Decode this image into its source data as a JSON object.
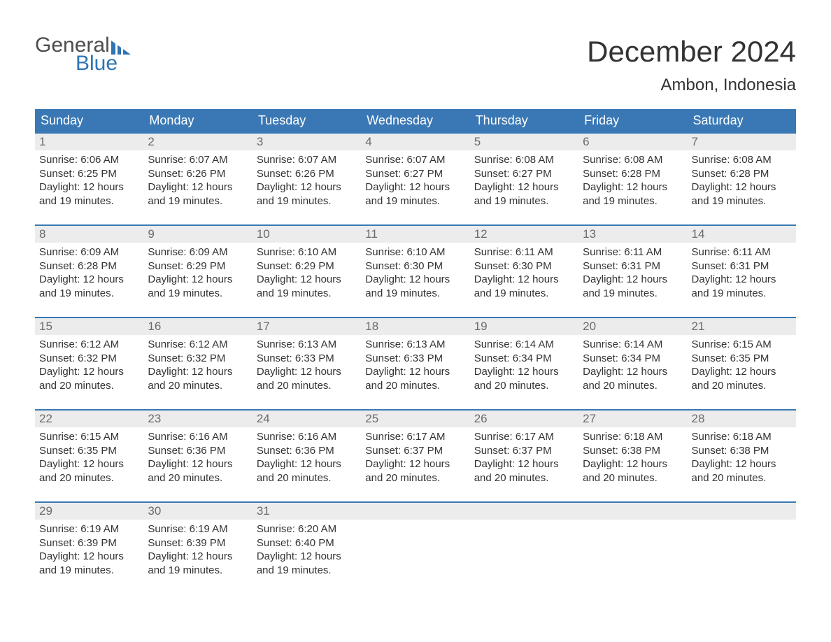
{
  "logo": {
    "word1": "General",
    "word2": "Blue",
    "accent_color": "#2e74b5",
    "text_color": "#4d4d4d"
  },
  "title": "December 2024",
  "location": "Ambon, Indonesia",
  "colors": {
    "header_bg": "#3a78b5",
    "header_text": "#ffffff",
    "week_border": "#3a78b5",
    "daynum_bg": "#ececec",
    "daynum_color": "#6b6b6b",
    "body_text": "#333333",
    "page_bg": "#ffffff"
  },
  "fonts": {
    "title_size_pt": 32,
    "location_size_pt": 18,
    "dow_size_pt": 14,
    "body_size_pt": 11
  },
  "days_of_week": [
    "Sunday",
    "Monday",
    "Tuesday",
    "Wednesday",
    "Thursday",
    "Friday",
    "Saturday"
  ],
  "weeks": [
    [
      {
        "n": "1",
        "sr": "Sunrise: 6:06 AM",
        "ss": "Sunset: 6:25 PM",
        "d1": "Daylight: 12 hours",
        "d2": "and 19 minutes."
      },
      {
        "n": "2",
        "sr": "Sunrise: 6:07 AM",
        "ss": "Sunset: 6:26 PM",
        "d1": "Daylight: 12 hours",
        "d2": "and 19 minutes."
      },
      {
        "n": "3",
        "sr": "Sunrise: 6:07 AM",
        "ss": "Sunset: 6:26 PM",
        "d1": "Daylight: 12 hours",
        "d2": "and 19 minutes."
      },
      {
        "n": "4",
        "sr": "Sunrise: 6:07 AM",
        "ss": "Sunset: 6:27 PM",
        "d1": "Daylight: 12 hours",
        "d2": "and 19 minutes."
      },
      {
        "n": "5",
        "sr": "Sunrise: 6:08 AM",
        "ss": "Sunset: 6:27 PM",
        "d1": "Daylight: 12 hours",
        "d2": "and 19 minutes."
      },
      {
        "n": "6",
        "sr": "Sunrise: 6:08 AM",
        "ss": "Sunset: 6:28 PM",
        "d1": "Daylight: 12 hours",
        "d2": "and 19 minutes."
      },
      {
        "n": "7",
        "sr": "Sunrise: 6:08 AM",
        "ss": "Sunset: 6:28 PM",
        "d1": "Daylight: 12 hours",
        "d2": "and 19 minutes."
      }
    ],
    [
      {
        "n": "8",
        "sr": "Sunrise: 6:09 AM",
        "ss": "Sunset: 6:28 PM",
        "d1": "Daylight: 12 hours",
        "d2": "and 19 minutes."
      },
      {
        "n": "9",
        "sr": "Sunrise: 6:09 AM",
        "ss": "Sunset: 6:29 PM",
        "d1": "Daylight: 12 hours",
        "d2": "and 19 minutes."
      },
      {
        "n": "10",
        "sr": "Sunrise: 6:10 AM",
        "ss": "Sunset: 6:29 PM",
        "d1": "Daylight: 12 hours",
        "d2": "and 19 minutes."
      },
      {
        "n": "11",
        "sr": "Sunrise: 6:10 AM",
        "ss": "Sunset: 6:30 PM",
        "d1": "Daylight: 12 hours",
        "d2": "and 19 minutes."
      },
      {
        "n": "12",
        "sr": "Sunrise: 6:11 AM",
        "ss": "Sunset: 6:30 PM",
        "d1": "Daylight: 12 hours",
        "d2": "and 19 minutes."
      },
      {
        "n": "13",
        "sr": "Sunrise: 6:11 AM",
        "ss": "Sunset: 6:31 PM",
        "d1": "Daylight: 12 hours",
        "d2": "and 19 minutes."
      },
      {
        "n": "14",
        "sr": "Sunrise: 6:11 AM",
        "ss": "Sunset: 6:31 PM",
        "d1": "Daylight: 12 hours",
        "d2": "and 19 minutes."
      }
    ],
    [
      {
        "n": "15",
        "sr": "Sunrise: 6:12 AM",
        "ss": "Sunset: 6:32 PM",
        "d1": "Daylight: 12 hours",
        "d2": "and 20 minutes."
      },
      {
        "n": "16",
        "sr": "Sunrise: 6:12 AM",
        "ss": "Sunset: 6:32 PM",
        "d1": "Daylight: 12 hours",
        "d2": "and 20 minutes."
      },
      {
        "n": "17",
        "sr": "Sunrise: 6:13 AM",
        "ss": "Sunset: 6:33 PM",
        "d1": "Daylight: 12 hours",
        "d2": "and 20 minutes."
      },
      {
        "n": "18",
        "sr": "Sunrise: 6:13 AM",
        "ss": "Sunset: 6:33 PM",
        "d1": "Daylight: 12 hours",
        "d2": "and 20 minutes."
      },
      {
        "n": "19",
        "sr": "Sunrise: 6:14 AM",
        "ss": "Sunset: 6:34 PM",
        "d1": "Daylight: 12 hours",
        "d2": "and 20 minutes."
      },
      {
        "n": "20",
        "sr": "Sunrise: 6:14 AM",
        "ss": "Sunset: 6:34 PM",
        "d1": "Daylight: 12 hours",
        "d2": "and 20 minutes."
      },
      {
        "n": "21",
        "sr": "Sunrise: 6:15 AM",
        "ss": "Sunset: 6:35 PM",
        "d1": "Daylight: 12 hours",
        "d2": "and 20 minutes."
      }
    ],
    [
      {
        "n": "22",
        "sr": "Sunrise: 6:15 AM",
        "ss": "Sunset: 6:35 PM",
        "d1": "Daylight: 12 hours",
        "d2": "and 20 minutes."
      },
      {
        "n": "23",
        "sr": "Sunrise: 6:16 AM",
        "ss": "Sunset: 6:36 PM",
        "d1": "Daylight: 12 hours",
        "d2": "and 20 minutes."
      },
      {
        "n": "24",
        "sr": "Sunrise: 6:16 AM",
        "ss": "Sunset: 6:36 PM",
        "d1": "Daylight: 12 hours",
        "d2": "and 20 minutes."
      },
      {
        "n": "25",
        "sr": "Sunrise: 6:17 AM",
        "ss": "Sunset: 6:37 PM",
        "d1": "Daylight: 12 hours",
        "d2": "and 20 minutes."
      },
      {
        "n": "26",
        "sr": "Sunrise: 6:17 AM",
        "ss": "Sunset: 6:37 PM",
        "d1": "Daylight: 12 hours",
        "d2": "and 20 minutes."
      },
      {
        "n": "27",
        "sr": "Sunrise: 6:18 AM",
        "ss": "Sunset: 6:38 PM",
        "d1": "Daylight: 12 hours",
        "d2": "and 20 minutes."
      },
      {
        "n": "28",
        "sr": "Sunrise: 6:18 AM",
        "ss": "Sunset: 6:38 PM",
        "d1": "Daylight: 12 hours",
        "d2": "and 20 minutes."
      }
    ],
    [
      {
        "n": "29",
        "sr": "Sunrise: 6:19 AM",
        "ss": "Sunset: 6:39 PM",
        "d1": "Daylight: 12 hours",
        "d2": "and 19 minutes."
      },
      {
        "n": "30",
        "sr": "Sunrise: 6:19 AM",
        "ss": "Sunset: 6:39 PM",
        "d1": "Daylight: 12 hours",
        "d2": "and 19 minutes."
      },
      {
        "n": "31",
        "sr": "Sunrise: 6:20 AM",
        "ss": "Sunset: 6:40 PM",
        "d1": "Daylight: 12 hours",
        "d2": "and 19 minutes."
      },
      {
        "empty": true
      },
      {
        "empty": true
      },
      {
        "empty": true
      },
      {
        "empty": true
      }
    ]
  ]
}
